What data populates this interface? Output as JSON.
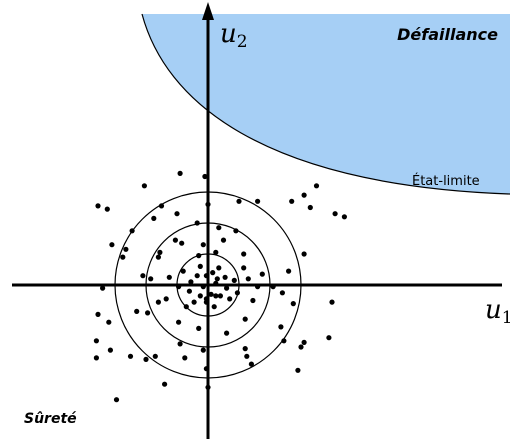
{
  "labels": {
    "failure_region": "Défaillance",
    "limit_state": "État-limite",
    "safe_region": "Sûreté",
    "axis_u2_var": "u",
    "axis_u2_sub": "2",
    "axis_u1_var": "u",
    "axis_u1_sub": "1"
  },
  "colors": {
    "failure_fill": "#a6cff5",
    "ink": "#000000"
  },
  "chart_data": {
    "type": "scatter",
    "title": "",
    "xlabel": "u1",
    "ylabel": "u2",
    "grid": false,
    "iso_probability_circle_radii": [
      1,
      2,
      3
    ],
    "points": [
      [
        -0.25,
        0.6
      ],
      [
        0.35,
        0.55
      ],
      [
        -0.8,
        0.45
      ],
      [
        0.15,
        0.4
      ],
      [
        -0.35,
        0.3
      ],
      [
        0.55,
        0.25
      ],
      [
        -0.55,
        0.1
      ],
      [
        -0.05,
        0.3
      ],
      [
        0.85,
        0.15
      ],
      [
        0.25,
        0.05
      ],
      [
        -0.15,
        -0.05
      ],
      [
        0.6,
        -0.1
      ],
      [
        -0.6,
        -0.2
      ],
      [
        0.1,
        -0.3
      ],
      [
        -0.25,
        -0.35
      ],
      [
        0.4,
        -0.35
      ],
      [
        -0.95,
        -0.05
      ],
      [
        0.95,
        -0.25
      ],
      [
        -0.45,
        -0.55
      ],
      [
        0.2,
        -0.7
      ],
      [
        -0.05,
        -0.45
      ],
      [
        0.7,
        -0.45
      ],
      [
        -0.7,
        -0.7
      ],
      [
        -0.3,
        0.95
      ],
      [
        0.25,
        1.05
      ],
      [
        -1.25,
        0.25
      ],
      [
        1.3,
        0.2
      ],
      [
        -0.15,
        1.3
      ],
      [
        0.5,
        1.45
      ],
      [
        1.15,
        0.55
      ],
      [
        1.45,
        -0.5
      ],
      [
        -1.35,
        -0.45
      ],
      [
        -0.85,
        1.35
      ],
      [
        1.15,
        1.0
      ],
      [
        -1.6,
        -0.55
      ],
      [
        -0.3,
        -1.4
      ],
      [
        0.6,
        -1.55
      ],
      [
        -0.95,
        -1.2
      ],
      [
        1.2,
        -1.1
      ],
      [
        -1.6,
        0.9
      ],
      [
        -1.05,
        1.45
      ],
      [
        1.6,
        -0.05
      ],
      [
        -0.35,
        2.0
      ],
      [
        0.35,
        1.85
      ],
      [
        0.9,
        1.75
      ],
      [
        0.0,
        2.6
      ],
      [
        -0.05,
        -0.55
      ],
      [
        -2.1,
        0.3
      ],
      [
        2.1,
        -0.05
      ],
      [
        -1.85,
        0.2
      ],
      [
        -1.95,
        -0.9
      ],
      [
        -0.9,
        -1.9
      ],
      [
        1.75,
        0.35
      ],
      [
        -2.3,
        -0.85
      ],
      [
        2.4,
        -0.25
      ],
      [
        -0.15,
        -2.1
      ],
      [
        -2.65,
        1.15
      ],
      [
        -1.55,
        1.05
      ],
      [
        1.2,
        -2.05
      ],
      [
        1.25,
        -2.3
      ],
      [
        -0.75,
        -2.35
      ],
      [
        2.35,
        -1.35
      ],
      [
        2.75,
        -0.6
      ],
      [
        3.1,
        1.0
      ],
      [
        2.6,
        0.45
      ],
      [
        -2.75,
        0.9
      ],
      [
        -3.1,
        1.3
      ],
      [
        -3.25,
        2.45
      ],
      [
        -3.55,
        2.55
      ],
      [
        -1.75,
        2.15
      ],
      [
        -2.45,
        1.75
      ],
      [
        -1.0,
        2.3
      ],
      [
        -1.5,
        2.55
      ],
      [
        -2.05,
        3.2
      ],
      [
        -0.9,
        3.6
      ],
      [
        -0.1,
        3.5
      ],
      [
        1.0,
        2.7
      ],
      [
        1.6,
        2.7
      ],
      [
        2.7,
        2.7
      ],
      [
        3.3,
        2.5
      ],
      [
        3.1,
        2.9
      ],
      [
        4.1,
        2.3
      ],
      [
        3.5,
        3.2
      ],
      [
        4.4,
        2.2
      ],
      [
        -3.4,
        -0.1
      ],
      [
        -3.2,
        -1.2
      ],
      [
        -3.6,
        -1.8
      ],
      [
        -3.15,
        -2.1
      ],
      [
        -2.0,
        -2.4
      ],
      [
        2.45,
        -1.8
      ],
      [
        3.0,
        -2.0
      ],
      [
        3.9,
        -1.7
      ],
      [
        3.1,
        -1.85
      ],
      [
        4.0,
        -0.55
      ],
      [
        -3.55,
        -0.95
      ],
      [
        -3.6,
        -2.35
      ],
      [
        -1.7,
        -2.3
      ],
      [
        1.4,
        -2.55
      ],
      [
        2.9,
        -2.75
      ],
      [
        -0.05,
        -2.7
      ],
      [
        -2.5,
        -2.3
      ],
      [
        0.0,
        -3.3
      ],
      [
        -1.4,
        -3.2
      ],
      [
        -2.95,
        -3.7
      ],
      [
        0.25,
        -0.35
      ],
      [
        0.3,
        0.2
      ]
    ]
  }
}
